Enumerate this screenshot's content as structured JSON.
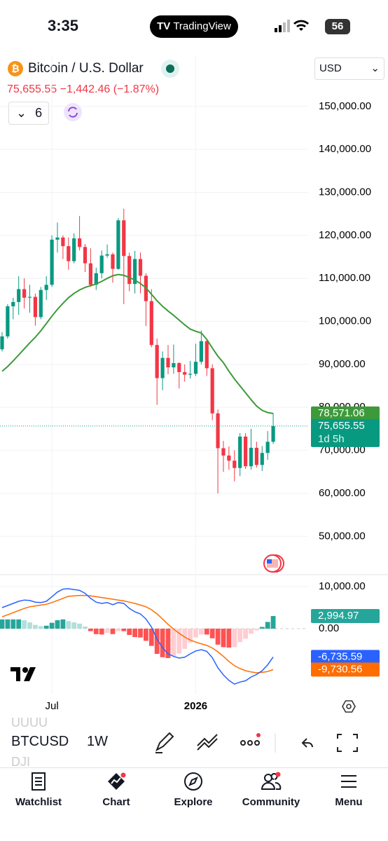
{
  "status_bar": {
    "time": "3:35",
    "app": "TradingView",
    "battery": "56"
  },
  "header": {
    "symbol": "Bitcoin / U.S. Dollar",
    "price": "75,655.55",
    "change": "−1,442.46 (−1.87%)",
    "interval_count": "6",
    "currency": "USD"
  },
  "chart_data": [
    {
      "type": "candlestick",
      "open": [
        93500,
        96500,
        103500,
        104500,
        107500,
        105500,
        105700,
        101000,
        107300,
        108500,
        119000,
        119500,
        117500,
        114000,
        119300,
        117300,
        113500,
        108500,
        111200,
        115300,
        115600,
        112200,
        123500,
        115200,
        108700,
        114500,
        110600,
        104700,
        94500,
        86800,
        91500,
        89300,
        90300,
        88200,
        87600,
        87800,
        90600,
        95400,
        89100,
        78600,
        70500,
        68800,
        67600,
        65900,
        73200,
        66300,
        70600,
        66600,
        69400,
        72000
      ],
      "high": [
        97500,
        104000,
        105500,
        110500,
        110000,
        108500,
        106500,
        108000,
        110500,
        120000,
        123000,
        120000,
        119500,
        120500,
        124500,
        118000,
        117000,
        112500,
        116500,
        117900,
        116000,
        124000,
        126200,
        116000,
        116400,
        116000,
        111200,
        107500,
        96000,
        93000,
        94500,
        94600,
        90500,
        90000,
        90800,
        94800,
        97900,
        95800,
        90000,
        79500,
        72200,
        70900,
        70000,
        74000,
        74000,
        75000,
        72000,
        71000,
        74500,
        78600
      ],
      "low": [
        93000,
        96000,
        100500,
        101500,
        103000,
        102000,
        99000,
        100500,
        105000,
        108000,
        116000,
        114500,
        112000,
        113500,
        116500,
        111500,
        108000,
        107300,
        110000,
        114800,
        109000,
        112000,
        104000,
        107000,
        106500,
        106500,
        98900,
        94000,
        80600,
        84000,
        87700,
        87800,
        84400,
        86000,
        86700,
        87300,
        90000,
        87300,
        77000,
        60000,
        65000,
        65500,
        62800,
        64000,
        65700,
        65500,
        66000,
        65200,
        67800,
        71500
      ],
      "close": [
        96500,
        103500,
        104500,
        107500,
        105500,
        105700,
        101000,
        107300,
        108500,
        119000,
        119500,
        117500,
        114000,
        119300,
        117300,
        113500,
        108500,
        111200,
        115300,
        115600,
        112200,
        123500,
        115200,
        108700,
        114500,
        110600,
        104700,
        94500,
        86800,
        91500,
        89300,
        90300,
        88200,
        87600,
        87800,
        90600,
        95400,
        89100,
        78600,
        70500,
        68800,
        67600,
        65900,
        73200,
        66300,
        70600,
        66600,
        69400,
        72000,
        75655.55
      ],
      "up_color": "#089981",
      "down_color": "#f23645",
      "ma": {
        "color": "#3d9a3a",
        "values": [
          88400,
          89500,
          90800,
          92200,
          93600,
          95000,
          96300,
          97800,
          99500,
          101200,
          102800,
          104200,
          105500,
          106500,
          107300,
          107900,
          108300,
          108700,
          109300,
          110000,
          110600,
          110900,
          110700,
          110200,
          109600,
          108800,
          107800,
          106300,
          104800,
          103500,
          102400,
          101400,
          100300,
          99200,
          98200,
          97700,
          97300,
          95800,
          93800,
          91900,
          90400,
          88400,
          86600,
          85000,
          83400,
          81800,
          80300,
          79300,
          78800,
          78571.06
        ],
        "last_label": "78,571.06"
      },
      "last_close_label": "75,655.55",
      "countdown": "1d 5h",
      "xlim": [
        -0.38,
        55.32
      ],
      "xticks": [
        {
          "value": 9,
          "label": "Jul"
        },
        {
          "value": 35,
          "label": "2026"
        }
      ],
      "ylim": [
        41900,
        161700
      ],
      "yticks": [
        {
          "value": 50000,
          "label": "50,000.00"
        },
        {
          "value": 60000,
          "label": "60,000.00"
        },
        {
          "value": 70000,
          "label": "70,000.00"
        },
        {
          "value": 80000,
          "label": "80,000.00"
        },
        {
          "value": 90000,
          "label": "90,000.00"
        },
        {
          "value": 100000,
          "label": "100,000.00"
        },
        {
          "value": 110000,
          "label": "110,000.00"
        },
        {
          "value": 120000,
          "label": "120,000.00"
        },
        {
          "value": 130000,
          "label": "130,000.00"
        },
        {
          "value": 140000,
          "label": "140,000.00"
        },
        {
          "value": 150000,
          "label": "150,000.00"
        }
      ],
      "grid": true
    },
    {
      "type": "macd",
      "histogram": [
        2200,
        2200,
        2200,
        2200,
        2000,
        1500,
        900,
        600,
        700,
        1400,
        2000,
        2200,
        1800,
        1500,
        1200,
        500,
        -600,
        -1300,
        -1400,
        -1000,
        -1300,
        -600,
        -600,
        -1500,
        -2000,
        -2100,
        -2900,
        -4100,
        -6000,
        -6800,
        -7000,
        -6500,
        -5900,
        -4800,
        -3300,
        -2100,
        -1400,
        -1400,
        -2300,
        -3800,
        -4400,
        -4500,
        -4400,
        -3200,
        -2400,
        -1200,
        -400,
        400,
        1600,
        2994.97
      ],
      "histogram_colors": {
        "rising_up": "#26a69a",
        "falling_up": "#b2dfdb",
        "falling_down": "#ff5252",
        "rising_down": "#ffcdd2"
      },
      "histogram_last_label": "2,994.97",
      "macd": {
        "color": "#2962ff",
        "values": [
          5000,
          5500,
          6000,
          6500,
          6800,
          6700,
          6300,
          6200,
          6500,
          7600,
          8700,
          9400,
          9500,
          9300,
          9100,
          8400,
          7200,
          6300,
          6000,
          6200,
          5700,
          6200,
          6000,
          4800,
          4000,
          3500,
          2300,
          400,
          -2500,
          -4500,
          -6000,
          -6600,
          -7000,
          -6800,
          -6000,
          -5300,
          -5000,
          -5400,
          -6900,
          -9300,
          -11000,
          -12300,
          -13200,
          -12700,
          -12400,
          -11500,
          -10900,
          -10000,
          -8600,
          -6735.59
        ],
        "last_label": "-6,735.59"
      },
      "signal": {
        "color": "#ff6d00",
        "values": [
          2800,
          3300,
          3800,
          4300,
          4800,
          5200,
          5400,
          5600,
          5800,
          6200,
          6700,
          7200,
          7700,
          7800,
          7900,
          7900,
          7800,
          7600,
          7400,
          7200,
          7000,
          6800,
          6600,
          6300,
          6000,
          5600,
          5200,
          4500,
          3500,
          2300,
          1000,
          -100,
          -1100,
          -2000,
          -2700,
          -3200,
          -3600,
          -4000,
          -4600,
          -5500,
          -6600,
          -7800,
          -8800,
          -9500,
          -10000,
          -10300,
          -10500,
          -10400,
          -10200,
          -9730.56
        ],
        "last_label": "-9,730.56"
      },
      "xlim": [
        -0.38,
        55.32
      ],
      "ylim": [
        -15500,
        12833
      ],
      "yticks": [
        {
          "value": 0,
          "label": "0.00"
        },
        {
          "value": 10000,
          "label": "10,000.00"
        }
      ]
    }
  ],
  "toolbar": {
    "symbol": "BTCUSD",
    "interval": "1W",
    "behind": [
      "UUUU",
      "DJI"
    ]
  },
  "nav": [
    "Watchlist",
    "Chart",
    "Explore",
    "Community",
    "Menu"
  ]
}
